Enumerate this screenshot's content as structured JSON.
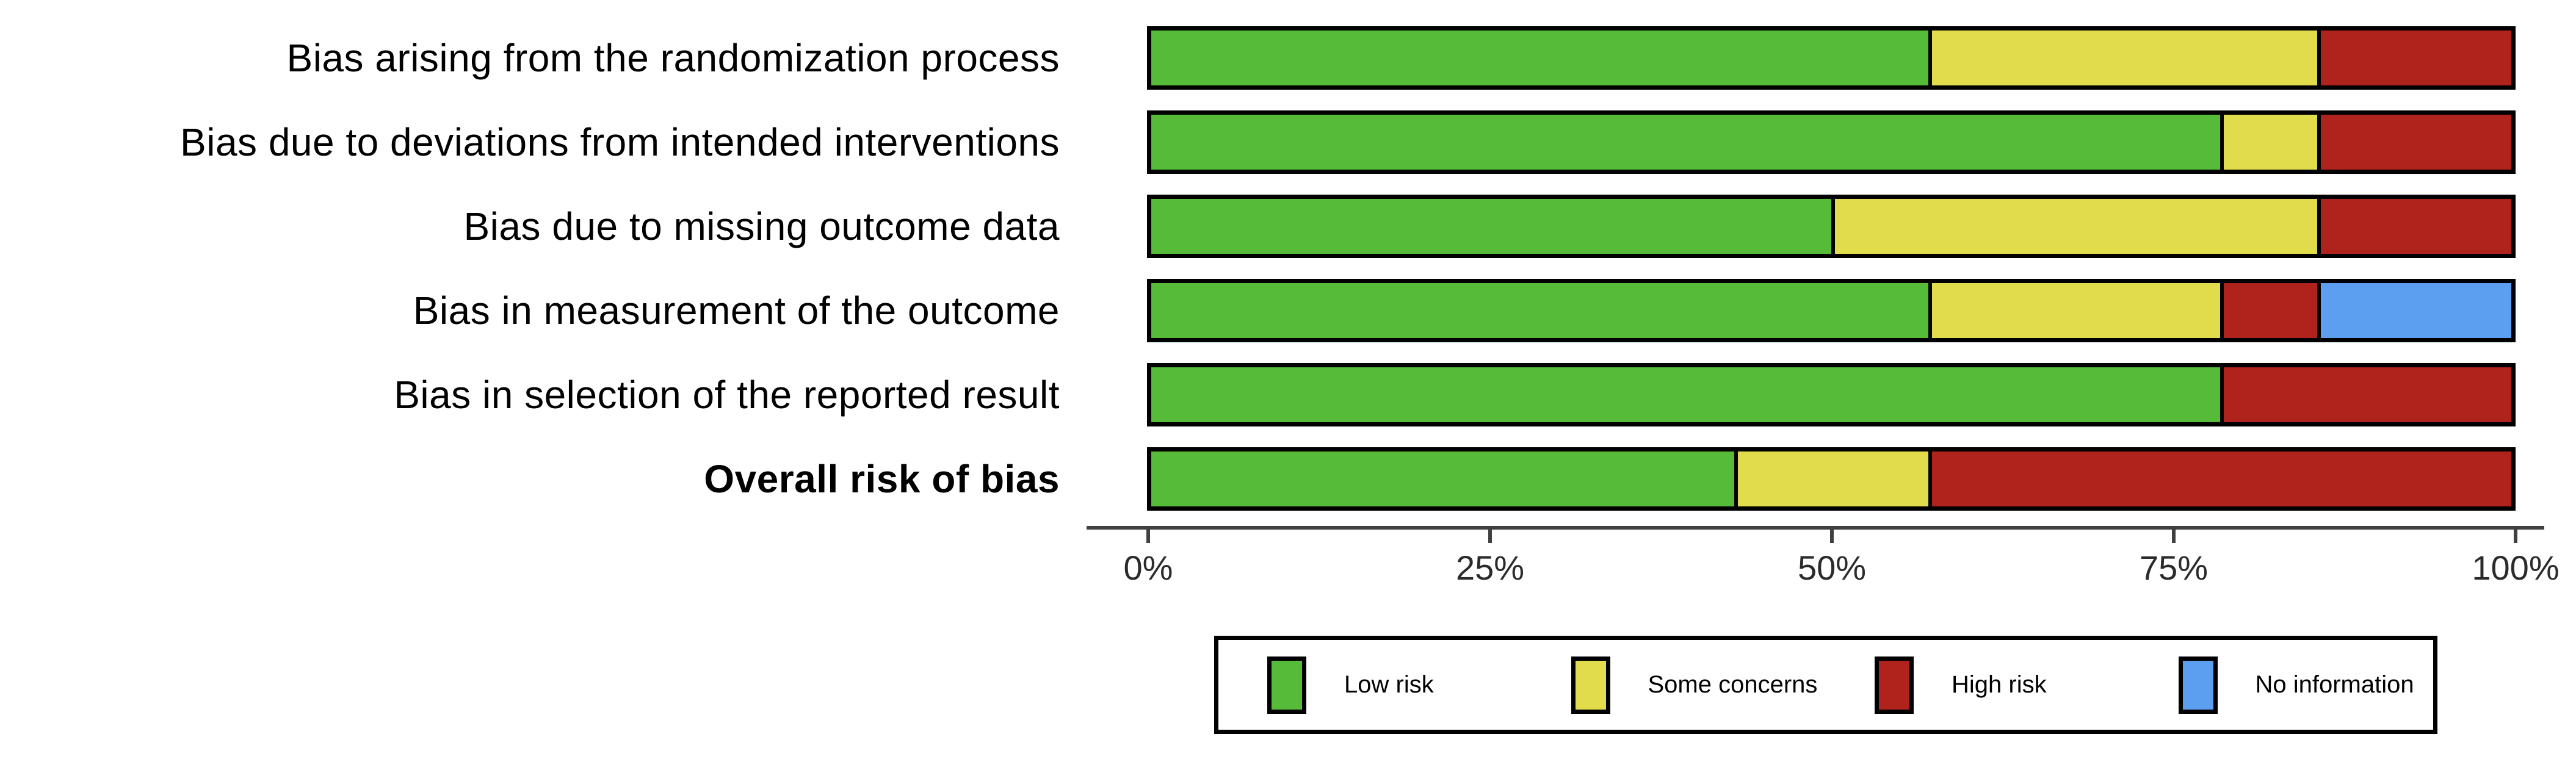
{
  "colors": {
    "low": "#55BB38",
    "some": "#E0DC4B",
    "high": "#AF231C",
    "noinfo": "#5C9EEF",
    "bar_border": "#000000",
    "axis": "#404040",
    "text": "#000000"
  },
  "chart_data": {
    "type": "bar",
    "orientation": "horizontal",
    "stacked": true,
    "title": "",
    "xlabel": "",
    "ylabel": "",
    "xlim": [
      0,
      100
    ],
    "grid": false,
    "legend_position": "bottom",
    "categories": [
      {
        "label": "Bias arising from the randomization process",
        "bold": false
      },
      {
        "label": "Bias due to deviations from intended interventions",
        "bold": false
      },
      {
        "label": "Bias due to missing outcome data",
        "bold": false
      },
      {
        "label": "Bias in measurement of the outcome",
        "bold": false
      },
      {
        "label": "Bias in selection of the reported result",
        "bold": false
      },
      {
        "label": "Overall risk of bias",
        "bold": true
      }
    ],
    "series": [
      {
        "name": "Low risk",
        "color_key": "low",
        "values": [
          57.14,
          78.57,
          50.0,
          57.14,
          78.57,
          42.86
        ]
      },
      {
        "name": "Some concerns",
        "color_key": "some",
        "values": [
          28.57,
          7.14,
          35.71,
          21.43,
          0.0,
          14.29
        ]
      },
      {
        "name": "High risk",
        "color_key": "high",
        "values": [
          14.29,
          14.29,
          14.29,
          7.14,
          21.43,
          42.86
        ]
      },
      {
        "name": "No information",
        "color_key": "noinfo",
        "values": [
          0.0,
          0.0,
          0.0,
          14.29,
          0.0,
          0.0
        ]
      }
    ],
    "x_ticks": [
      "0%",
      "25%",
      "50%",
      "75%",
      "100%"
    ],
    "legend": [
      {
        "label": "Low risk",
        "color_key": "low"
      },
      {
        "label": "Some concerns",
        "color_key": "some"
      },
      {
        "label": "High risk",
        "color_key": "high"
      },
      {
        "label": "No information",
        "color_key": "noinfo"
      }
    ]
  }
}
